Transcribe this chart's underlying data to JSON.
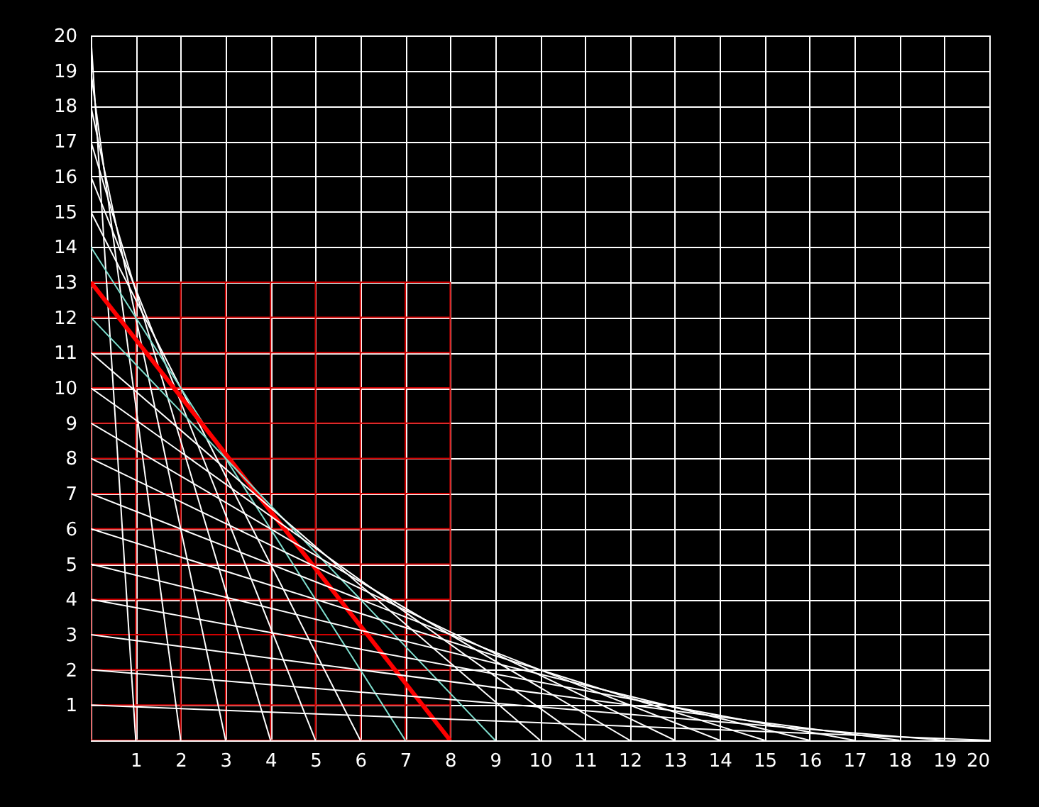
{
  "chart_data": {
    "type": "line",
    "xlim": [
      0,
      20
    ],
    "ylim": [
      0,
      20
    ],
    "xticks": [
      1,
      2,
      3,
      4,
      5,
      6,
      7,
      8,
      9,
      10,
      11,
      12,
      13,
      14,
      15,
      16,
      17,
      18,
      19,
      20
    ],
    "yticks": [
      1,
      2,
      3,
      4,
      5,
      6,
      7,
      8,
      9,
      10,
      11,
      12,
      13,
      14,
      15,
      16,
      17,
      18,
      19,
      20
    ],
    "grid": true,
    "legend": false,
    "marker": "none",
    "line_style": "solid",
    "series": [
      {
        "color": "#d00000",
        "x": [
          0,
          0
        ],
        "values": [
          0,
          13
        ]
      },
      {
        "color": "#d00000",
        "x": [
          1,
          1
        ],
        "values": [
          0,
          13
        ]
      },
      {
        "color": "#d00000",
        "x": [
          2,
          2
        ],
        "values": [
          0,
          13
        ]
      },
      {
        "color": "#d00000",
        "x": [
          3,
          3
        ],
        "values": [
          0,
          13
        ]
      },
      {
        "color": "#d00000",
        "x": [
          4,
          4
        ],
        "values": [
          0,
          13
        ]
      },
      {
        "color": "#d00000",
        "x": [
          5,
          5
        ],
        "values": [
          0,
          13
        ]
      },
      {
        "color": "#d00000",
        "x": [
          6,
          6
        ],
        "values": [
          0,
          13
        ]
      },
      {
        "color": "#d00000",
        "x": [
          7,
          7
        ],
        "values": [
          0,
          13
        ]
      },
      {
        "color": "#d00000",
        "x": [
          8,
          8
        ],
        "values": [
          0,
          13
        ]
      },
      {
        "color": "#d00000",
        "x": [
          0,
          8
        ],
        "values": [
          0,
          0
        ]
      },
      {
        "color": "#d00000",
        "x": [
          0,
          8
        ],
        "values": [
          1,
          1
        ]
      },
      {
        "color": "#d00000",
        "x": [
          0,
          8
        ],
        "values": [
          2,
          2
        ]
      },
      {
        "color": "#d00000",
        "x": [
          0,
          8
        ],
        "values": [
          3,
          3
        ]
      },
      {
        "color": "#d00000",
        "x": [
          0,
          8
        ],
        "values": [
          4,
          4
        ]
      },
      {
        "color": "#d00000",
        "x": [
          0,
          8
        ],
        "values": [
          5,
          5
        ]
      },
      {
        "color": "#d00000",
        "x": [
          0,
          8
        ],
        "values": [
          6,
          6
        ]
      },
      {
        "color": "#d00000",
        "x": [
          0,
          8
        ],
        "values": [
          7,
          7
        ]
      },
      {
        "color": "#d00000",
        "x": [
          0,
          8
        ],
        "values": [
          8,
          8
        ]
      },
      {
        "color": "#d00000",
        "x": [
          0,
          8
        ],
        "values": [
          9,
          9
        ]
      },
      {
        "color": "#d00000",
        "x": [
          0,
          8
        ],
        "values": [
          10,
          10
        ]
      },
      {
        "color": "#d00000",
        "x": [
          0,
          8
        ],
        "values": [
          11,
          11
        ]
      },
      {
        "color": "#d00000",
        "x": [
          0,
          8
        ],
        "values": [
          12,
          12
        ]
      },
      {
        "color": "#d00000",
        "x": [
          0,
          8
        ],
        "values": [
          13,
          13
        ]
      },
      {
        "color": "#ffffff",
        "x": [
          0,
          1
        ],
        "values": [
          20,
          0
        ]
      },
      {
        "color": "#ffffff",
        "x": [
          0,
          2
        ],
        "values": [
          19,
          0
        ]
      },
      {
        "color": "#ffffff",
        "x": [
          0,
          3
        ],
        "values": [
          18,
          0
        ]
      },
      {
        "color": "#ffffff",
        "x": [
          0,
          4
        ],
        "values": [
          17,
          0
        ]
      },
      {
        "color": "#ffffff",
        "x": [
          0,
          5
        ],
        "values": [
          16,
          0
        ]
      },
      {
        "color": "#ffffff",
        "x": [
          0,
          6
        ],
        "values": [
          15,
          0
        ]
      },
      {
        "color": "#80e0d0",
        "x": [
          0,
          7
        ],
        "values": [
          14,
          0
        ]
      },
      {
        "color": "#ff0000",
        "x": [
          0,
          8
        ],
        "values": [
          13,
          0
        ]
      },
      {
        "color": "#80e0d0",
        "x": [
          0,
          9
        ],
        "values": [
          12,
          0
        ]
      },
      {
        "color": "#ffffff",
        "x": [
          0,
          10
        ],
        "values": [
          11,
          0
        ]
      },
      {
        "color": "#ffffff",
        "x": [
          0,
          11
        ],
        "values": [
          10,
          0
        ]
      },
      {
        "color": "#ffffff",
        "x": [
          0,
          12
        ],
        "values": [
          9,
          0
        ]
      },
      {
        "color": "#ffffff",
        "x": [
          0,
          13
        ],
        "values": [
          8,
          0
        ]
      },
      {
        "color": "#ffffff",
        "x": [
          0,
          14
        ],
        "values": [
          7,
          0
        ]
      },
      {
        "color": "#ffffff",
        "x": [
          0,
          15
        ],
        "values": [
          6,
          0
        ]
      },
      {
        "color": "#ffffff",
        "x": [
          0,
          16
        ],
        "values": [
          5,
          0
        ]
      },
      {
        "color": "#ffffff",
        "x": [
          0,
          17
        ],
        "values": [
          4,
          0
        ]
      },
      {
        "color": "#ffffff",
        "x": [
          0,
          18
        ],
        "values": [
          3,
          0
        ]
      },
      {
        "color": "#ffffff",
        "x": [
          0,
          19
        ],
        "values": [
          2,
          0
        ]
      },
      {
        "color": "#ffffff",
        "x": [
          0,
          20
        ],
        "values": [
          1,
          0
        ]
      }
    ]
  }
}
